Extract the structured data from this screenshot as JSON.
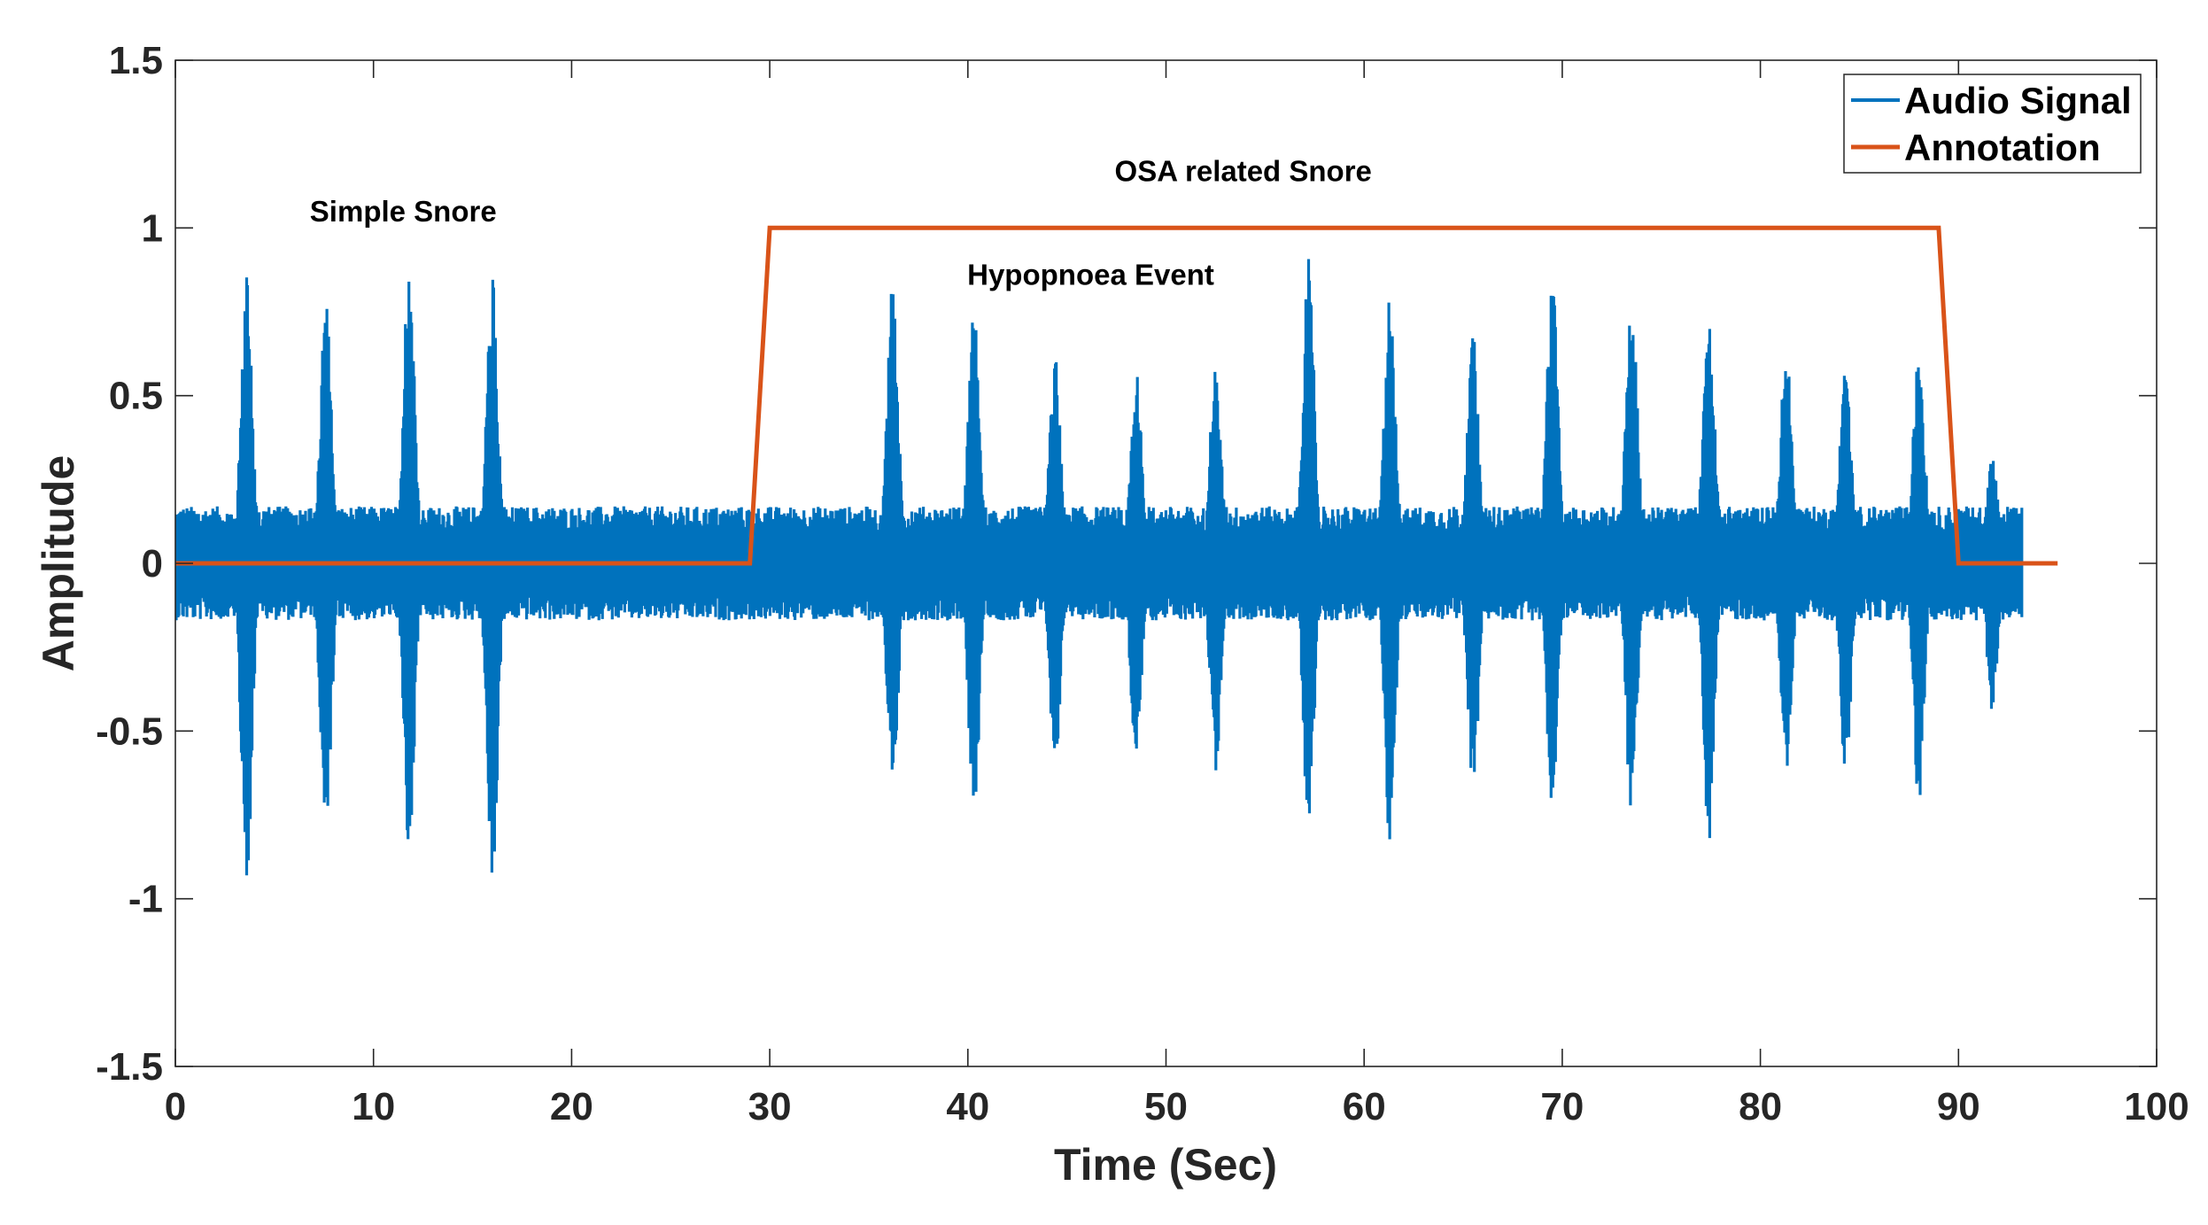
{
  "chart_data": {
    "type": "line",
    "title": "",
    "xlabel": "Time (Sec)",
    "ylabel": "Amplitude",
    "xlim": [
      0,
      100
    ],
    "ylim": [
      -1.5,
      1.5
    ],
    "xticks": [
      0,
      10,
      20,
      30,
      40,
      50,
      60,
      70,
      80,
      90,
      100
    ],
    "yticks": [
      -1.5,
      -1,
      -0.5,
      0,
      0.5,
      1,
      1.5
    ],
    "xtick_labels": [
      "0",
      "10",
      "20",
      "30",
      "40",
      "50",
      "60",
      "70",
      "80",
      "90",
      "100"
    ],
    "ytick_labels": [
      "-1.5",
      "-1",
      "-0.5",
      "0",
      "0.5",
      "1",
      "1.5"
    ],
    "grid": false,
    "legend_position": "top-right",
    "series": [
      {
        "name": "Audio Signal",
        "color": "#0072BD",
        "x_range": [
          0,
          93.2
        ],
        "noise_amplitude": 0.17,
        "bursts": [
          {
            "t": 3.6,
            "pos": 0.87,
            "neg": -0.95
          },
          {
            "t": 7.6,
            "pos": 0.78,
            "neg": -0.83
          },
          {
            "t": 11.8,
            "pos": 0.93,
            "neg": -0.87
          },
          {
            "t": 16.0,
            "pos": 0.87,
            "neg": -0.97
          },
          {
            "t": 36.2,
            "pos": 0.85,
            "neg": -0.7
          },
          {
            "t": 40.3,
            "pos": 0.78,
            "neg": -0.78
          },
          {
            "t": 44.4,
            "pos": 0.62,
            "neg": -0.62
          },
          {
            "t": 48.5,
            "pos": 0.57,
            "neg": -0.62
          },
          {
            "t": 52.5,
            "pos": 0.61,
            "neg": -0.62
          },
          {
            "t": 57.2,
            "pos": 0.92,
            "neg": -0.8
          },
          {
            "t": 61.3,
            "pos": 0.81,
            "neg": -0.83
          },
          {
            "t": 65.5,
            "pos": 0.68,
            "neg": -0.7
          },
          {
            "t": 69.5,
            "pos": 0.85,
            "neg": -0.76
          },
          {
            "t": 73.5,
            "pos": 0.85,
            "neg": -0.77
          },
          {
            "t": 77.4,
            "pos": 0.82,
            "neg": -0.83
          },
          {
            "t": 81.3,
            "pos": 0.65,
            "neg": -0.67
          },
          {
            "t": 84.3,
            "pos": 0.62,
            "neg": -0.64
          },
          {
            "t": 88.0,
            "pos": 0.66,
            "neg": -0.72
          },
          {
            "t": 91.7,
            "pos": 0.32,
            "neg": -0.44
          }
        ]
      },
      {
        "name": "Annotation",
        "color": "#D95319",
        "x": [
          0,
          29,
          30,
          89,
          90,
          95
        ],
        "y": [
          0,
          0,
          1,
          1,
          0,
          0
        ]
      }
    ],
    "annotations": [
      {
        "text": "Simple Snore",
        "x": 11.5,
        "y": 1.02
      },
      {
        "text": "OSA related Snore",
        "x": 53.9,
        "y": 1.14
      },
      {
        "text": "Hypopnoea Event",
        "x": 46.2,
        "y": 0.83
      }
    ]
  }
}
